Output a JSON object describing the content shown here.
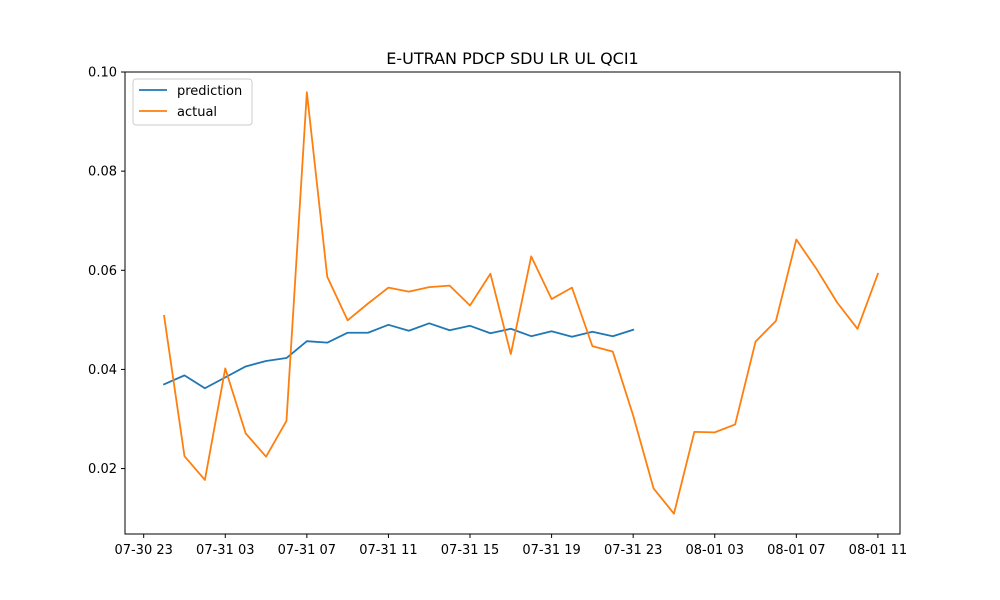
{
  "chart_data": {
    "type": "line",
    "title": "E-UTRAN PDCP SDU LR UL QCI1",
    "xlabel": "",
    "ylabel": "",
    "grid": false,
    "legend_position": "top-left",
    "x_ticks": [
      "07-30 23",
      "07-31 03",
      "07-31 07",
      "07-31 11",
      "07-31 15",
      "07-31 19",
      "07-31 23",
      "08-01 03",
      "08-01 07",
      "08-01 11"
    ],
    "y_ticks": [
      "0.02",
      "0.04",
      "0.06",
      "0.08",
      "0.10"
    ],
    "ylim": [
      0.0068,
      0.1
    ],
    "xlim": [
      "07-30 22:05",
      "08-01 12:05"
    ],
    "series": [
      {
        "name": "prediction",
        "color": "#1f77b4",
        "points": [
          {
            "x": "07-31 00:00",
            "y": 0.037
          },
          {
            "x": "07-31 01:00",
            "y": 0.0388
          },
          {
            "x": "07-31 02:00",
            "y": 0.0362
          },
          {
            "x": "07-31 03:00",
            "y": 0.0384
          },
          {
            "x": "07-31 04:00",
            "y": 0.0406
          },
          {
            "x": "07-31 05:00",
            "y": 0.0417
          },
          {
            "x": "07-31 06:00",
            "y": 0.0423
          },
          {
            "x": "07-31 07:00",
            "y": 0.0457
          },
          {
            "x": "07-31 08:00",
            "y": 0.0454
          },
          {
            "x": "07-31 09:00",
            "y": 0.0474
          },
          {
            "x": "07-31 10:00",
            "y": 0.0474
          },
          {
            "x": "07-31 11:00",
            "y": 0.049
          },
          {
            "x": "07-31 12:00",
            "y": 0.0478
          },
          {
            "x": "07-31 13:00",
            "y": 0.0493
          },
          {
            "x": "07-31 14:00",
            "y": 0.0479
          },
          {
            "x": "07-31 15:00",
            "y": 0.0488
          },
          {
            "x": "07-31 16:00",
            "y": 0.0473
          },
          {
            "x": "07-31 17:00",
            "y": 0.0482
          },
          {
            "x": "07-31 18:00",
            "y": 0.0467
          },
          {
            "x": "07-31 19:00",
            "y": 0.0477
          },
          {
            "x": "07-31 20:00",
            "y": 0.0466
          },
          {
            "x": "07-31 21:00",
            "y": 0.0476
          },
          {
            "x": "07-31 22:00",
            "y": 0.0467
          },
          {
            "x": "07-31 23:00",
            "y": 0.048
          }
        ]
      },
      {
        "name": "actual",
        "color": "#ff7f0e",
        "points": [
          {
            "x": "07-31 00:00",
            "y": 0.0508
          },
          {
            "x": "07-31 01:00",
            "y": 0.0225
          },
          {
            "x": "07-31 02:00",
            "y": 0.0177
          },
          {
            "x": "07-31 03:00",
            "y": 0.0402
          },
          {
            "x": "07-31 04:00",
            "y": 0.0271
          },
          {
            "x": "07-31 05:00",
            "y": 0.0224
          },
          {
            "x": "07-31 06:00",
            "y": 0.0296
          },
          {
            "x": "07-31 07:00",
            "y": 0.0959
          },
          {
            "x": "07-31 08:00",
            "y": 0.0587
          },
          {
            "x": "07-31 09:00",
            "y": 0.0499
          },
          {
            "x": "07-31 10:00",
            "y": 0.0533
          },
          {
            "x": "07-31 11:00",
            "y": 0.0565
          },
          {
            "x": "07-31 12:00",
            "y": 0.0557
          },
          {
            "x": "07-31 13:00",
            "y": 0.0566
          },
          {
            "x": "07-31 14:00",
            "y": 0.0569
          },
          {
            "x": "07-31 15:00",
            "y": 0.0529
          },
          {
            "x": "07-31 16:00",
            "y": 0.0593
          },
          {
            "x": "07-31 17:00",
            "y": 0.0431
          },
          {
            "x": "07-31 18:00",
            "y": 0.0628
          },
          {
            "x": "07-31 19:00",
            "y": 0.0542
          },
          {
            "x": "07-31 20:00",
            "y": 0.0565
          },
          {
            "x": "07-31 21:00",
            "y": 0.0447
          },
          {
            "x": "07-31 22:00",
            "y": 0.0436
          },
          {
            "x": "07-31 23:00",
            "y": 0.0307
          },
          {
            "x": "08-01 00:00",
            "y": 0.016
          },
          {
            "x": "08-01 01:00",
            "y": 0.0109
          },
          {
            "x": "08-01 02:00",
            "y": 0.0274
          },
          {
            "x": "08-01 03:00",
            "y": 0.0273
          },
          {
            "x": "08-01 04:00",
            "y": 0.0289
          },
          {
            "x": "08-01 05:00",
            "y": 0.0456
          },
          {
            "x": "08-01 06:00",
            "y": 0.0498
          },
          {
            "x": "08-01 07:00",
            "y": 0.0662
          },
          {
            "x": "08-01 08:00",
            "y": 0.0602
          },
          {
            "x": "08-01 09:00",
            "y": 0.0535
          },
          {
            "x": "08-01 10:00",
            "y": 0.0482
          },
          {
            "x": "08-01 11:00",
            "y": 0.0593
          }
        ]
      }
    ]
  }
}
